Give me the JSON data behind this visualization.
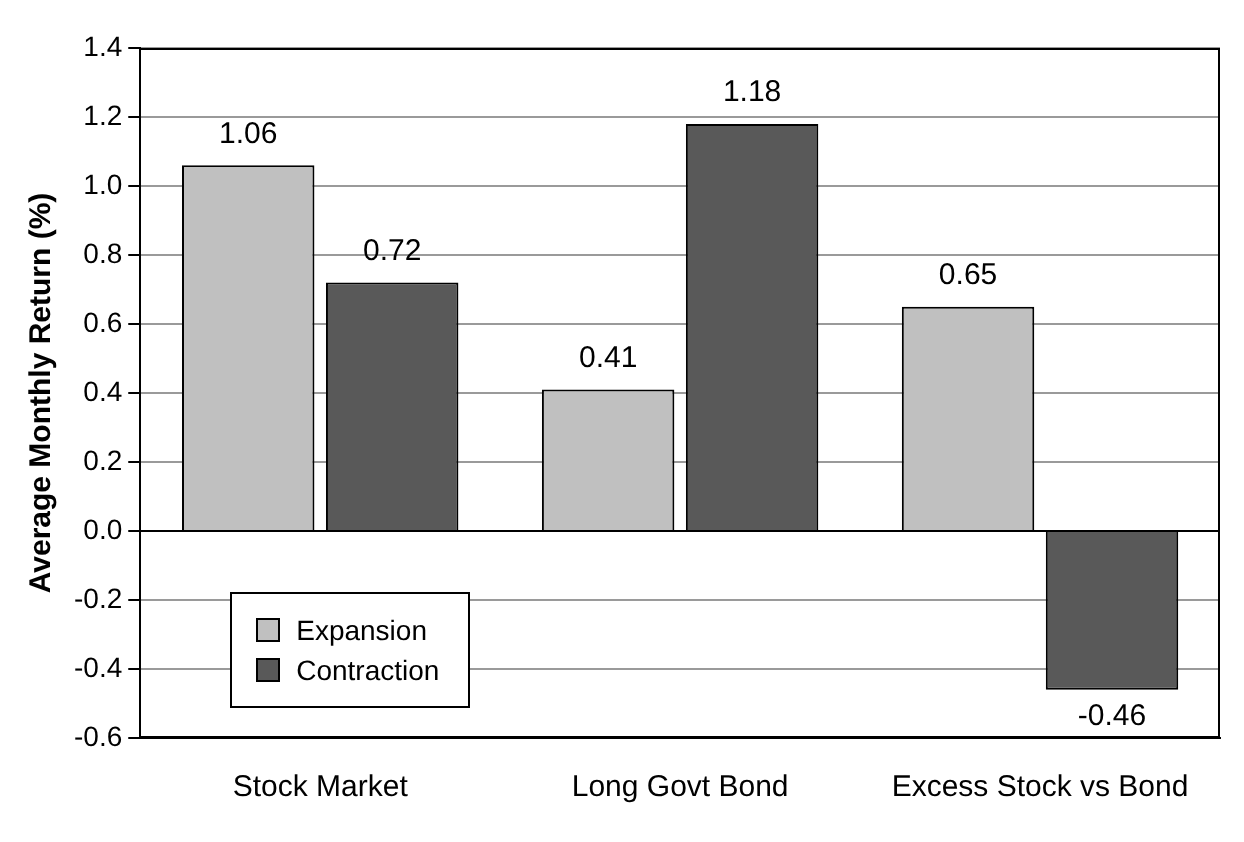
{
  "chart_data": {
    "type": "bar",
    "ylabel": "Average Monthly Return (%)",
    "categories": [
      "Stock Market",
      "Long Govt Bond",
      "Excess Stock vs Bond"
    ],
    "series": [
      {
        "name": "Expansion",
        "color": "#c0c0c0",
        "values": [
          1.06,
          0.41,
          0.65
        ]
      },
      {
        "name": "Contraction",
        "color": "#595959",
        "values": [
          0.72,
          1.18,
          -0.46
        ]
      }
    ],
    "ylim": [
      -0.6,
      1.4
    ],
    "yticks": [
      -0.6,
      -0.4,
      -0.2,
      {
        "value": 0,
        "label": "0.0"
      },
      0.2,
      0.4,
      0.6,
      0.8,
      {
        "value": 1,
        "label": "1.0"
      },
      1.2,
      1.4
    ],
    "grid": "y",
    "legend": "bottom left",
    "data_labels": true
  }
}
